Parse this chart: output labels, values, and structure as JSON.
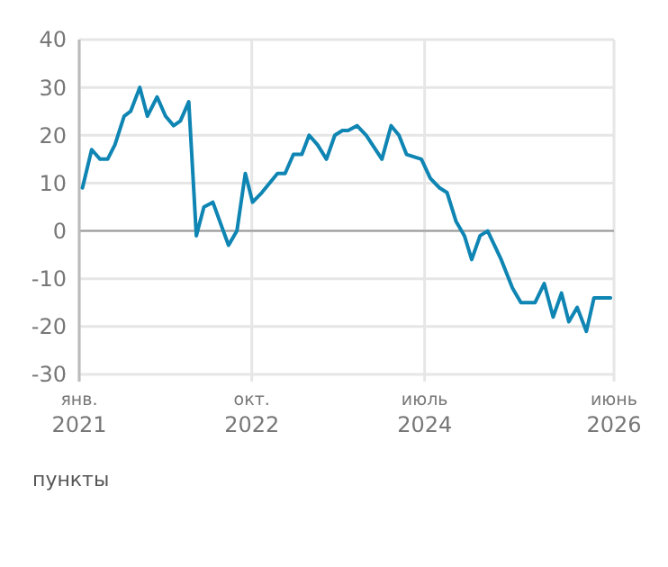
{
  "chart_data": {
    "type": "line",
    "ylabel": "пункты",
    "x": [
      "2021-01-13",
      "2021-02-16",
      "2021-03-19",
      "2021-04-16",
      "2021-05-13",
      "2021-06-16",
      "2021-07-10",
      "2021-08-13",
      "2021-09-10",
      "2021-10-16",
      "2021-11-16",
      "2021-12-16",
      "2022-01-10",
      "2022-02-10",
      "2022-03-10",
      "2022-04-07",
      "2022-05-10",
      "2022-07-07",
      "2022-08-07",
      "2022-09-07",
      "2022-10-04",
      "2022-11-07",
      "2023-01-04",
      "2023-02-01",
      "2023-03-04",
      "2023-04-04",
      "2023-05-01",
      "2023-06-01",
      "2023-07-04",
      "2023-08-04",
      "2023-09-01",
      "2023-09-22",
      "2023-10-25",
      "2023-11-28",
      "2024-01-25",
      "2024-02-28",
      "2024-03-28",
      "2024-04-25",
      "2024-06-19",
      "2024-07-22",
      "2024-08-25",
      "2024-09-22",
      "2024-10-25",
      "2024-11-25",
      "2024-12-22",
      "2025-01-22",
      "2025-02-19",
      "2025-04-10",
      "2025-05-22",
      "2025-06-22",
      "2025-08-13",
      "2025-09-16",
      "2025-10-19",
      "2025-11-19",
      "2025-12-16",
      "2026-01-16",
      "2026-02-19",
      "2026-03-19",
      "2026-05-19"
    ],
    "series": [
      {
        "color": "#0f85b3",
        "values": [
          9,
          17,
          15,
          15,
          18,
          24,
          25,
          30,
          24,
          28,
          24,
          22,
          23,
          27,
          -1,
          5,
          6,
          -3,
          0,
          12,
          6,
          8,
          12,
          12,
          16,
          16,
          20,
          18,
          15,
          20,
          21,
          21,
          22,
          20,
          15,
          22,
          20,
          16,
          15,
          11,
          9,
          8,
          2,
          -1,
          -6,
          -1,
          0,
          -6,
          -12,
          -15,
          -15,
          -11,
          -18,
          -13,
          -19,
          -16,
          -21,
          -14,
          -14
        ]
      }
    ],
    "xlim": [
      "2021-01",
      "2026-06"
    ],
    "xticks": [
      {
        "value": "2021-01",
        "label": "янв.\n2021"
      },
      {
        "value": "2022-10",
        "label": "окт.\n2022"
      },
      {
        "value": "2024-07",
        "label": "июль\n2024"
      },
      {
        "value": "2026-06",
        "label": "июнь\n2026"
      }
    ],
    "ylim": [
      -30,
      40
    ],
    "yticks": [
      -30,
      -20,
      -10,
      0,
      10,
      20,
      30,
      40
    ],
    "grid": true,
    "ref_lines": [
      {
        "axis": "y",
        "value": 0,
        "color": "#9a9a9a"
      }
    ],
    "line_style": "solid"
  }
}
